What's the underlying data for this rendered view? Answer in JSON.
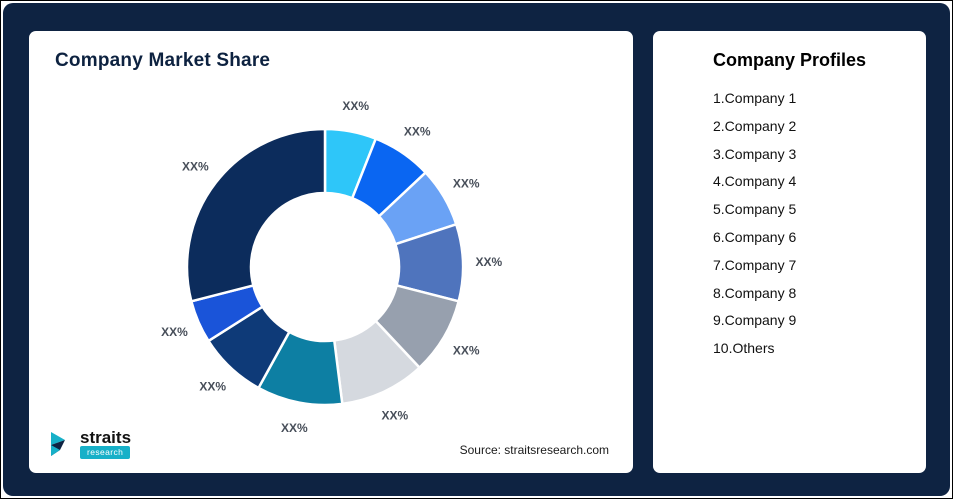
{
  "page": {
    "background_color": "#0e2342"
  },
  "left_card": {
    "title": "Company Market Share",
    "source": "Source: straitsresearch.com",
    "logo": {
      "name": "straits",
      "sub": "research",
      "accent_color": "#17b0c8",
      "navy_color": "#0e2342"
    }
  },
  "right_card": {
    "title": "Company Profiles",
    "items": [
      "1.Company 1",
      "2.Company 2",
      "3.Company 3",
      "4.Company 4",
      "5.Company 5",
      "6.Company 6",
      "7.Company 7",
      "8.Company 8",
      "9.Company 9",
      "10.Others"
    ]
  },
  "chart_data": {
    "type": "pie",
    "subtype": "donut",
    "title": "Company Market Share",
    "labels": [
      "XX%",
      "XX%",
      "XX%",
      "XX%",
      "XX%",
      "XX%",
      "XX%",
      "XX%",
      "XX%",
      "XX%"
    ],
    "segment_names": [
      "Company 1",
      "Company 2",
      "Company 3",
      "Company 4",
      "Company 5",
      "Company 6",
      "Company 7",
      "Company 8",
      "Company 9",
      "Others"
    ],
    "values": [
      6,
      7,
      7,
      9,
      9,
      10,
      10,
      8,
      5,
      29
    ],
    "colors": [
      "#2ec6f9",
      "#0a66f2",
      "#6aa2f5",
      "#4f74bd",
      "#97a0ae",
      "#d5d9df",
      "#0d7fa3",
      "#0e3a78",
      "#1a54d9",
      "#0c2c5c"
    ],
    "start_angle_deg": -90,
    "direction": "clockwise",
    "legend": "none",
    "data_labels": "outside"
  }
}
